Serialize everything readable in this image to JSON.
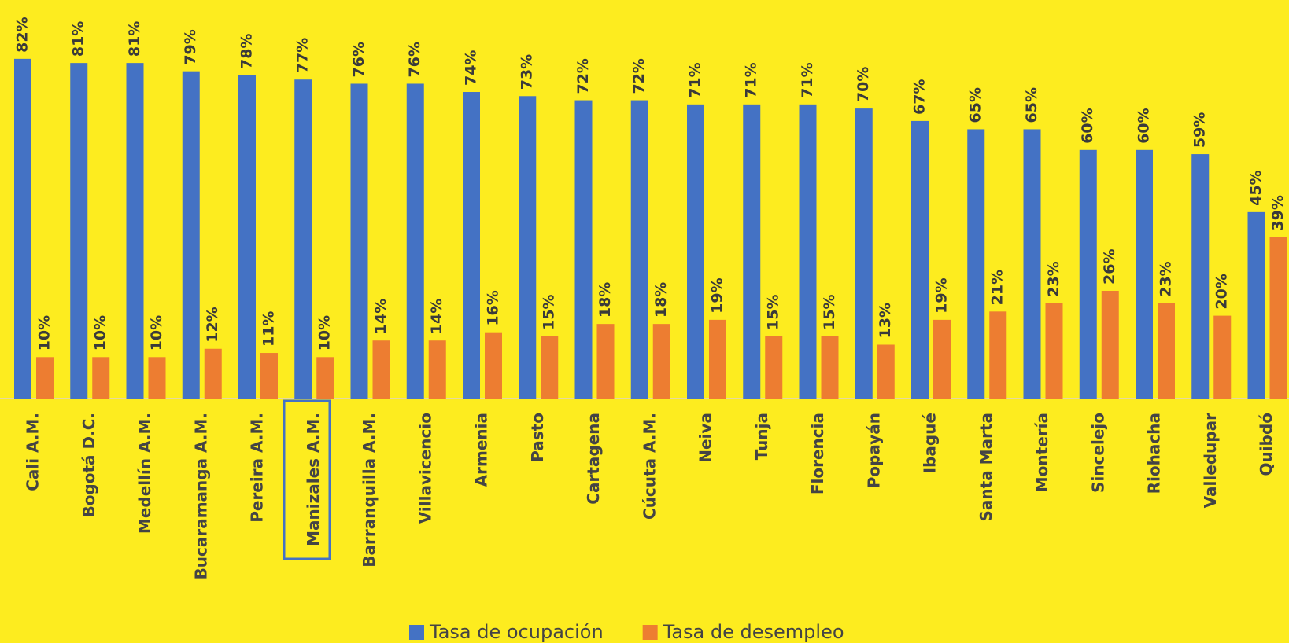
{
  "chart_data": {
    "type": "bar",
    "categories": [
      "Cali A.M.",
      "Bogotá D.C.",
      "Medellín A.M.",
      "Bucaramanga A.M.",
      "Pereira A.M.",
      "Manizales A.M.",
      "Barranquilla A.M.",
      "Villavicencio",
      "Armenia",
      "Pasto",
      "Cartagena",
      "Cúcuta A.M.",
      "Neiva",
      "Tunja",
      "Florencia",
      "Popayán",
      "Ibagué",
      "Santa Marta",
      "Montería",
      "Sincelejo",
      "Riohacha",
      "Valledupar",
      "Quibdó"
    ],
    "series": [
      {
        "name": "Tasa de ocupación",
        "color": "#4472c4",
        "values": [
          82,
          81,
          81,
          79,
          78,
          77,
          76,
          76,
          74,
          73,
          72,
          72,
          71,
          71,
          71,
          70,
          67,
          65,
          65,
          60,
          60,
          59,
          45
        ],
        "value_labels": [
          "82%",
          "81%",
          "81%",
          "79%",
          "78%",
          "77%",
          "76%",
          "76%",
          "74%",
          "73%",
          "72%",
          "72%",
          "71%",
          "71%",
          "71%",
          "70%",
          "67%",
          "65%",
          "65%",
          "60%",
          "60%",
          "59%",
          "45%"
        ]
      },
      {
        "name": "Tasa de desempleo",
        "color": "#ed7d31",
        "values": [
          10,
          10,
          10,
          12,
          11,
          10,
          14,
          14,
          16,
          15,
          18,
          18,
          19,
          15,
          15,
          13,
          19,
          21,
          23,
          26,
          23,
          20,
          39
        ],
        "value_labels": [
          "10%",
          "10%",
          "10%",
          "12%",
          "11%",
          "10%",
          "14%",
          "14%",
          "16%",
          "15%",
          "18%",
          "18%",
          "19%",
          "15%",
          "15%",
          "13%",
          "19%",
          "21%",
          "23%",
          "26%",
          "23%",
          "20%",
          "39%"
        ]
      }
    ],
    "legend": "bottom"
  }
}
